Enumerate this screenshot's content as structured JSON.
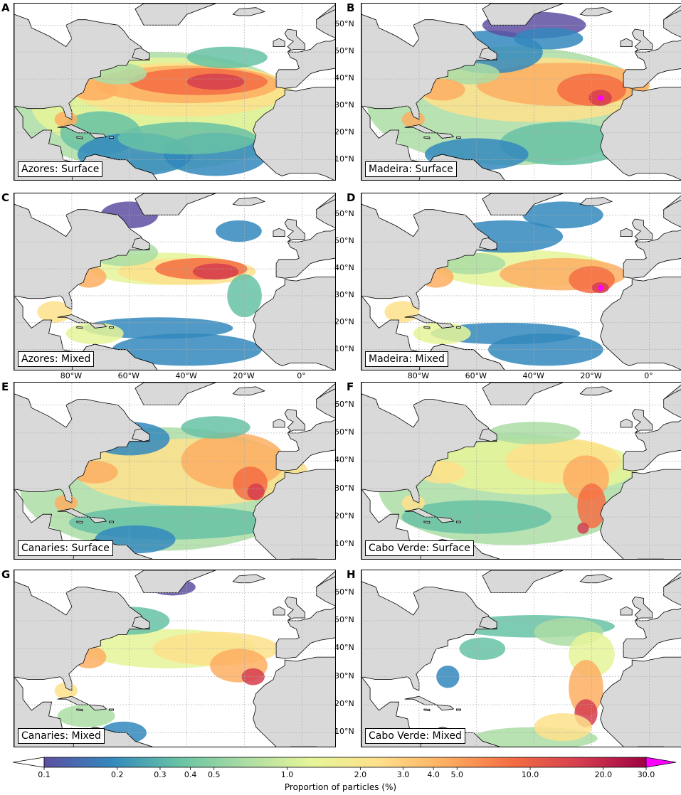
{
  "panels": [
    {
      "letter": "A",
      "label": "Azores: Surface",
      "source": "azores",
      "mode": "surface"
    },
    {
      "letter": "B",
      "label": "Madeira: Surface",
      "source": "madeira",
      "mode": "surface"
    },
    {
      "letter": "C",
      "label": "Azores: Mixed",
      "source": "azores",
      "mode": "mixed"
    },
    {
      "letter": "D",
      "label": "Madeira: Mixed",
      "source": "madeira",
      "mode": "mixed"
    },
    {
      "letter": "E",
      "label": "Canaries: Surface",
      "source": "canaries",
      "mode": "surface"
    },
    {
      "letter": "F",
      "label": "Cabo Verde: Surface",
      "source": "caboverde",
      "mode": "surface"
    },
    {
      "letter": "G",
      "label": "Canaries: Mixed",
      "source": "canaries",
      "mode": "mixed"
    },
    {
      "letter": "H",
      "label": "Cabo Verde: Mixed",
      "source": "caboverde",
      "mode": "mixed"
    }
  ],
  "lat_ticks": [
    "10°N",
    "20°N",
    "30°N",
    "40°N",
    "50°N",
    "60°N"
  ],
  "lon_ticks": [
    "80°W",
    "60°W",
    "40°W",
    "20°W",
    "0°"
  ],
  "colorbar": {
    "title": "Proportion of particles (%)",
    "ticks": [
      "0.1",
      "0.2",
      "0.3",
      "0.4",
      "0.5",
      "1.0",
      "2.0",
      "3.0",
      "4.0",
      "5.0",
      "10.0",
      "20.0",
      "30.0"
    ],
    "scale": "log",
    "range": [
      0.1,
      30.0
    ],
    "extend_low_color": "#ffffff",
    "extend_high_color": "#ff00ff",
    "colormap": [
      "#5e4fa2",
      "#3288bd",
      "#66c2a5",
      "#abdda4",
      "#e6f598",
      "#fee08b",
      "#fdae61",
      "#f46d43",
      "#d53e4f",
      "#9e0142"
    ]
  },
  "colors": {
    "land": "#d9d9d9",
    "ocean": "#ffffff",
    "coast": "#000000",
    "grid": "#aaaaaa",
    "release_marker": "#ff00ff"
  }
}
